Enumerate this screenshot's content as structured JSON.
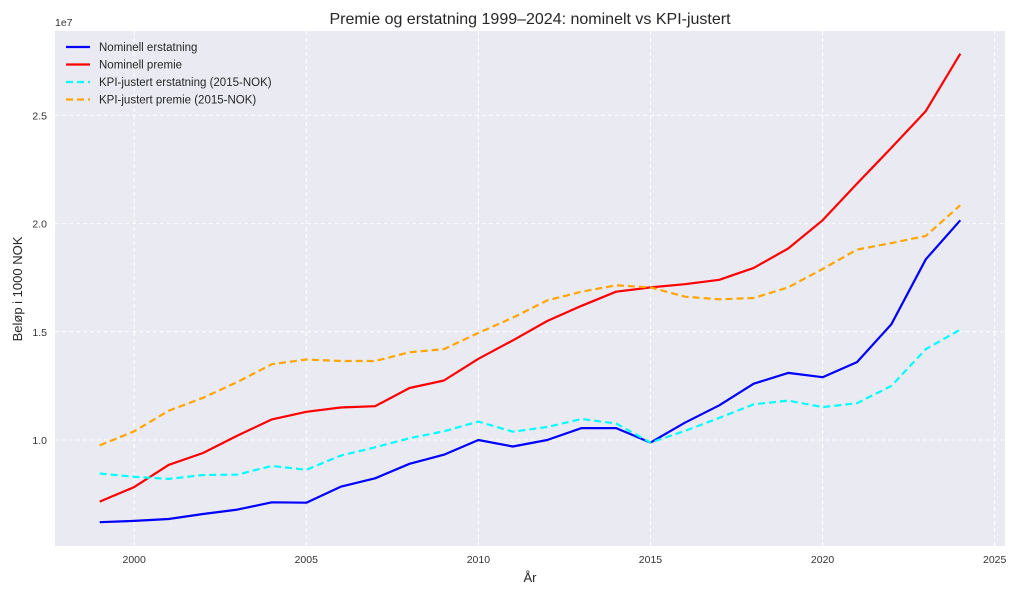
{
  "chart_data": {
    "type": "line",
    "title": "Premie og erstatning 1999–2024: nominelt vs KPI-justert",
    "xlabel": "År",
    "ylabel": "Beløp i 1000 NOK",
    "y_offset_label": "1e7",
    "y_scale": 10000000,
    "xlim": [
      1997.7,
      2025.3
    ],
    "ylim": [
      5100000,
      28900000
    ],
    "grid": true,
    "legend_position": "top-left",
    "x_ticks": [
      2000,
      2005,
      2010,
      2015,
      2020,
      2025
    ],
    "x_tick_labels": [
      "2000",
      "2005",
      "2010",
      "2015",
      "2020",
      "2025"
    ],
    "y_ticks": [
      10000000,
      15000000,
      20000000,
      25000000
    ],
    "y_tick_labels": [
      "1.0",
      "1.5",
      "2.0",
      "2.5"
    ],
    "x": [
      1999,
      2000,
      2001,
      2002,
      2003,
      2004,
      2005,
      2006,
      2007,
      2008,
      2009,
      2010,
      2011,
      2012,
      2013,
      2014,
      2015,
      2016,
      2017,
      2018,
      2019,
      2020,
      2021,
      2022,
      2023,
      2024
    ],
    "series": [
      {
        "name": "Nominell erstatning",
        "color": "#0000ff",
        "style": "solid",
        "values": [
          6200000,
          6260000,
          6350000,
          6580000,
          6780000,
          7120000,
          7100000,
          7840000,
          8230000,
          8900000,
          9320000,
          10000000,
          9700000,
          10000000,
          10550000,
          10550000,
          9880000,
          10800000,
          11600000,
          12600000,
          13100000,
          12900000,
          13600000,
          15350000,
          18350000,
          20150000
        ]
      },
      {
        "name": "Nominell premie",
        "color": "#ff0000",
        "style": "solid",
        "values": [
          7150000,
          7820000,
          8850000,
          9400000,
          10200000,
          10950000,
          11300000,
          11500000,
          11560000,
          12400000,
          12750000,
          13750000,
          14600000,
          15500000,
          16200000,
          16850000,
          17050000,
          17200000,
          17400000,
          17950000,
          18850000,
          20150000,
          21850000,
          23500000,
          25200000,
          27850000
        ]
      },
      {
        "name": "KPI-justert erstatning (2015-NOK)",
        "color": "#00ffff",
        "style": "dashed",
        "values": [
          8450000,
          8300000,
          8200000,
          8380000,
          8400000,
          8800000,
          8620000,
          9280000,
          9660000,
          10080000,
          10400000,
          10850000,
          10380000,
          10600000,
          10970000,
          10760000,
          9880000,
          10420000,
          11020000,
          11650000,
          11820000,
          11520000,
          11700000,
          12500000,
          14200000,
          15100000
        ]
      },
      {
        "name": "KPI-justert premie (2015-NOK)",
        "color": "#ffa500",
        "style": "dashed",
        "values": [
          9750000,
          10400000,
          11350000,
          11950000,
          12680000,
          13500000,
          13720000,
          13650000,
          13650000,
          14050000,
          14200000,
          14950000,
          15650000,
          16450000,
          16850000,
          17150000,
          17050000,
          16620000,
          16500000,
          16560000,
          17050000,
          17900000,
          18800000,
          19100000,
          19430000,
          20850000
        ]
      }
    ]
  }
}
